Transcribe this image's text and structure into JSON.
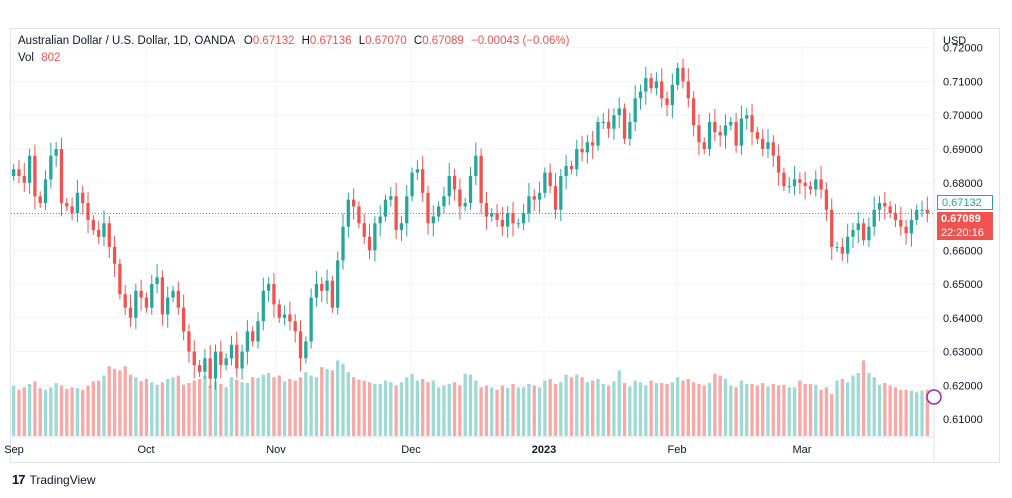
{
  "legend": {
    "symbol": "Australian Dollar / U.S. Dollar, 1D, OANDA",
    "o_label": "O",
    "o_value": "0.67132",
    "h_label": "H",
    "h_value": "0.67136",
    "l_label": "L",
    "l_value": "0.67070",
    "c_label": "C",
    "c_value": "0.67089",
    "change": "−0.00043 (−0.06%)",
    "vol_label": "Vol",
    "vol_value": "802"
  },
  "currency": "USD",
  "tags": {
    "open": "0.67132",
    "last": "0.67089",
    "countdown": "22:20:16"
  },
  "brand": {
    "logo": "17",
    "name": "TradingView"
  },
  "colors": {
    "up": "#26a69a",
    "down": "#ef5350",
    "up_vol": "#9ed9d3",
    "down_vol": "#f6a9a7",
    "grid": "#f0f3fa"
  },
  "chart_data": {
    "type": "candlestick",
    "ylim": [
      0.605,
      0.7205
    ],
    "y_ticks": [
      "0.72000",
      "0.71000",
      "0.70000",
      "0.69000",
      "0.68000",
      "0.67000",
      "0.66000",
      "0.65000",
      "0.64000",
      "0.63000",
      "0.62000",
      "0.61000"
    ],
    "x_ticks": [
      "Sep",
      "Oct",
      "Nov",
      "Dec",
      "2023",
      "Feb",
      "Mar"
    ],
    "candles_close": [
      0.684,
      0.682,
      0.68,
      0.688,
      0.676,
      0.674,
      0.681,
      0.688,
      0.69,
      0.674,
      0.673,
      0.671,
      0.677,
      0.674,
      0.669,
      0.666,
      0.664,
      0.668,
      0.661,
      0.656,
      0.647,
      0.643,
      0.64,
      0.648,
      0.646,
      0.643,
      0.65,
      0.652,
      0.641,
      0.646,
      0.648,
      0.643,
      0.636,
      0.63,
      0.626,
      0.624,
      0.628,
      0.622,
      0.63,
      0.626,
      0.628,
      0.632,
      0.625,
      0.63,
      0.636,
      0.633,
      0.639,
      0.648,
      0.65,
      0.644,
      0.64,
      0.641,
      0.639,
      0.636,
      0.628,
      0.633,
      0.646,
      0.65,
      0.648,
      0.651,
      0.643,
      0.657,
      0.667,
      0.675,
      0.673,
      0.668,
      0.664,
      0.66,
      0.668,
      0.67,
      0.675,
      0.676,
      0.666,
      0.668,
      0.676,
      0.683,
      0.684,
      0.677,
      0.668,
      0.67,
      0.673,
      0.676,
      0.682,
      0.678,
      0.673,
      0.674,
      0.682,
      0.688,
      0.674,
      0.67,
      0.671,
      0.669,
      0.667,
      0.671,
      0.668,
      0.668,
      0.671,
      0.676,
      0.675,
      0.677,
      0.683,
      0.679,
      0.672,
      0.682,
      0.685,
      0.684,
      0.69,
      0.689,
      0.692,
      0.691,
      0.698,
      0.698,
      0.696,
      0.7,
      0.702,
      0.693,
      0.698,
      0.705,
      0.707,
      0.711,
      0.708,
      0.71,
      0.705,
      0.703,
      0.709,
      0.714,
      0.71,
      0.705,
      0.697,
      0.692,
      0.69,
      0.698,
      0.695,
      0.694,
      0.697,
      0.698,
      0.691,
      0.699,
      0.7,
      0.695,
      0.693,
      0.69,
      0.692,
      0.688,
      0.683,
      0.679,
      0.679,
      0.681,
      0.68,
      0.679,
      0.678,
      0.681,
      0.678,
      0.672,
      0.661,
      0.661,
      0.659,
      0.664,
      0.666,
      0.668,
      0.663,
      0.667,
      0.672,
      0.674,
      0.673,
      0.671,
      0.669,
      0.667,
      0.665,
      0.669,
      0.672,
      0.672,
      0.671
    ],
    "volumes": [
      0.6,
      0.55,
      0.58,
      0.62,
      0.65,
      0.57,
      0.55,
      0.58,
      0.63,
      0.6,
      0.56,
      0.58,
      0.57,
      0.55,
      0.6,
      0.65,
      0.66,
      0.72,
      0.83,
      0.8,
      0.78,
      0.83,
      0.73,
      0.7,
      0.65,
      0.68,
      0.64,
      0.61,
      0.64,
      0.68,
      0.7,
      0.72,
      0.61,
      0.63,
      0.66,
      0.68,
      0.72,
      0.6,
      0.65,
      0.62,
      0.58,
      0.7,
      0.67,
      0.64,
      0.63,
      0.7,
      0.69,
      0.73,
      0.75,
      0.7,
      0.72,
      0.65,
      0.68,
      0.66,
      0.7,
      0.76,
      0.72,
      0.7,
      0.82,
      0.8,
      0.78,
      0.9,
      0.86,
      0.76,
      0.7,
      0.67,
      0.66,
      0.64,
      0.62,
      0.62,
      0.66,
      0.64,
      0.6,
      0.64,
      0.7,
      0.74,
      0.66,
      0.68,
      0.64,
      0.66,
      0.58,
      0.6,
      0.62,
      0.64,
      0.6,
      0.74,
      0.73,
      0.66,
      0.58,
      0.6,
      0.58,
      0.55,
      0.6,
      0.57,
      0.62,
      0.58,
      0.58,
      0.62,
      0.6,
      0.58,
      0.66,
      0.68,
      0.62,
      0.64,
      0.73,
      0.7,
      0.73,
      0.7,
      0.64,
      0.66,
      0.68,
      0.62,
      0.6,
      0.65,
      0.78,
      0.63,
      0.59,
      0.66,
      0.64,
      0.6,
      0.66,
      0.63,
      0.63,
      0.62,
      0.64,
      0.7,
      0.66,
      0.68,
      0.64,
      0.62,
      0.6,
      0.63,
      0.74,
      0.72,
      0.68,
      0.6,
      0.58,
      0.66,
      0.62,
      0.62,
      0.6,
      0.63,
      0.59,
      0.62,
      0.6,
      0.61,
      0.58,
      0.58,
      0.66,
      0.62,
      0.62,
      0.61,
      0.55,
      0.58,
      0.5,
      0.66,
      0.68,
      0.64,
      0.72,
      0.75,
      0.9,
      0.75,
      0.7,
      0.61,
      0.63,
      0.6,
      0.58,
      0.55,
      0.55,
      0.54,
      0.52,
      0.54,
      0.55,
      0.55,
      0.58
    ]
  }
}
